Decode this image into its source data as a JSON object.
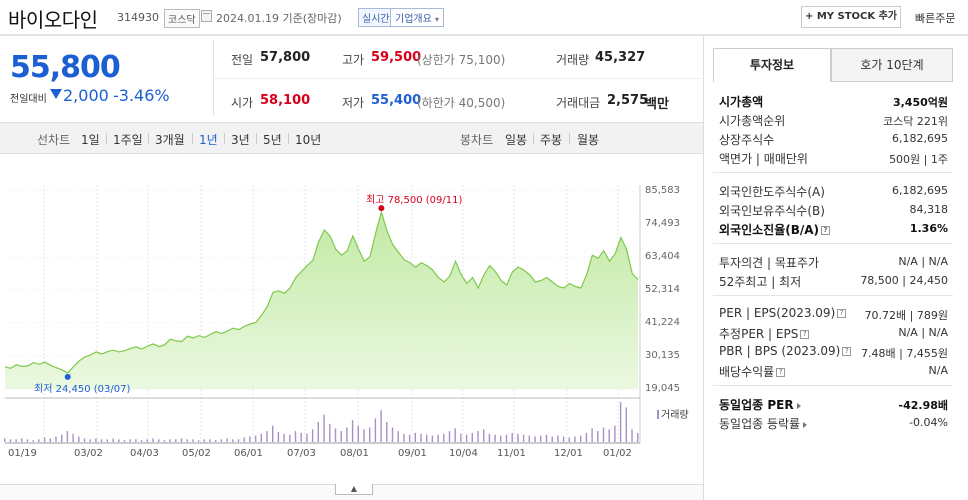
{
  "header": {
    "stock_name": "바이오다인",
    "stock_code": "314930",
    "market": "코스닥",
    "date_text": "2024.01.19 기준(장마감)",
    "realtime_label": "실시간",
    "corp_info_label": "기업개요",
    "mystock_label": "+ MY STOCK 추가",
    "quick_order_label": "빠른주문"
  },
  "quote": {
    "price": "55,800",
    "prev_label": "전일대비",
    "change": "2,000",
    "change_pct": "-3.46%",
    "prev_close_label": "전일",
    "prev_close": "57,800",
    "high_label": "고가",
    "high": "59,500",
    "upper_limit": "(상한가 75,100)",
    "volume_label": "거래량",
    "volume": "45,327",
    "open_label": "시가",
    "open": "58,100",
    "low_label": "저가",
    "low": "55,400",
    "lower_limit": "(하한가 40,500)",
    "amount_label": "거래대금",
    "amount": "2,575",
    "amount_unit": "백만"
  },
  "periods": {
    "line_label": "선차트",
    "items": [
      "1일",
      "1주일",
      "3개월",
      "1년",
      "3년",
      "5년",
      "10년"
    ],
    "active": "1년",
    "candle_label": "봉차트",
    "candle_items": [
      "일봉",
      "주봉",
      "월봉"
    ]
  },
  "chart_data": {
    "type": "area",
    "y_ticks": [
      "85,583",
      "74,493",
      "63,404",
      "52,314",
      "41,224",
      "30,135",
      "19,045"
    ],
    "ylim": [
      19045,
      85583
    ],
    "x_ticks": [
      "01/19",
      "03/02",
      "04/03",
      "05/02",
      "06/01",
      "07/03",
      "08/01",
      "09/01",
      "10/04",
      "11/01",
      "12/01",
      "01/02"
    ],
    "max_label": "최고 78,500 (09/11)",
    "min_label": "최저 24,450 (03/07)",
    "max_value": 78500,
    "min_value": 24450,
    "volume_label": "거래량",
    "line_color": "#7fc94b",
    "series": [
      {
        "values": [
          26500,
          26000,
          27200,
          26600,
          26800,
          27900,
          27300,
          28100,
          27000,
          26200,
          25500,
          24450,
          26500,
          28500,
          29800,
          30500,
          31500,
          30800,
          31600,
          32100,
          31500,
          31900,
          32700,
          33200,
          32500,
          33500,
          34200,
          33300,
          33900,
          35800,
          35200,
          35000,
          36800,
          36200,
          37000,
          36400,
          37400,
          38300,
          37700,
          38500,
          39500,
          39000,
          40100,
          40900,
          41400,
          43800,
          46800,
          51500,
          52000,
          51200,
          53000,
          56500,
          58500,
          60500,
          62300,
          68500,
          72500,
          70500,
          66000,
          64000,
          65500,
          70500,
          66000,
          62000,
          63500,
          71500,
          78500,
          72000,
          67500,
          65000,
          62500,
          61500,
          60000,
          61500,
          60500,
          59000,
          56500,
          55000,
          57000,
          62000,
          57500,
          54500,
          56500,
          53000,
          57500,
          60500,
          58500,
          55500,
          54000,
          58500,
          60000,
          59000,
          57500,
          55000,
          55500,
          56500,
          55000,
          53500,
          53000,
          54500,
          53500,
          53000,
          57500,
          64000,
          63000,
          65500,
          62000,
          64500,
          70000,
          66000,
          57800,
          55800
        ]
      }
    ],
    "volume": [
      4,
      3,
      3,
      4,
      3,
      2,
      3,
      5,
      4,
      6,
      8,
      12,
      9,
      6,
      4,
      3,
      4,
      3,
      3,
      4,
      3,
      2,
      3,
      3,
      2,
      3,
      4,
      3,
      2,
      3,
      3,
      4,
      3,
      3,
      2,
      3,
      3,
      2,
      3,
      4,
      3,
      3,
      5,
      6,
      7,
      9,
      12,
      18,
      11,
      9,
      8,
      12,
      10,
      9,
      14,
      22,
      30,
      20,
      15,
      12,
      16,
      24,
      18,
      14,
      16,
      26,
      35,
      22,
      16,
      12,
      9,
      8,
      10,
      9,
      8,
      7,
      8,
      9,
      12,
      15,
      9,
      8,
      10,
      12,
      14,
      9,
      8,
      7,
      8,
      10,
      9,
      8,
      7,
      6,
      7,
      8,
      6,
      7,
      6,
      5,
      6,
      7,
      10,
      15,
      12,
      16,
      14,
      18,
      44,
      38,
      14,
      10
    ]
  },
  "panel": {
    "tab_invest": "투자정보",
    "tab_quote": "호가 10단계",
    "market_cap_label": "시가총액",
    "market_cap": "3,450억원",
    "cap_rank_label": "시가총액순위",
    "cap_rank": "코스닥 221위",
    "shares_label": "상장주식수",
    "shares": "6,182,695",
    "par_label": "액면가 | 매매단위",
    "par": "500원 | 1주",
    "foreign_limit_label": "외국인한도주식수(A)",
    "foreign_limit": "6,182,695",
    "foreign_hold_label": "외국인보유주식수(B)",
    "foreign_hold": "84,318",
    "foreign_ratio_label": "외국인소진율(B/A)",
    "foreign_ratio": "1.36%",
    "opinion_label": "투자의견 | 목표주가",
    "opinion": "N/A | N/A",
    "week52_label": "52주최고 | 최저",
    "week52": "78,500 | 24,450",
    "per_label": "PER | EPS(2023.09)",
    "per": "70.72배 | 789원",
    "est_per_label": "추정PER | EPS",
    "est_per": "N/A | N/A",
    "pbr_label": "PBR | BPS (2023.09)",
    "pbr": "7.48배 | 7,455원",
    "div_label": "배당수익률",
    "div": "N/A",
    "peer_per_label": "동일업종 PER",
    "peer_per": "-42.98배",
    "peer_rate_label": "동일업종 등락률",
    "peer_rate": "-0.04%"
  }
}
